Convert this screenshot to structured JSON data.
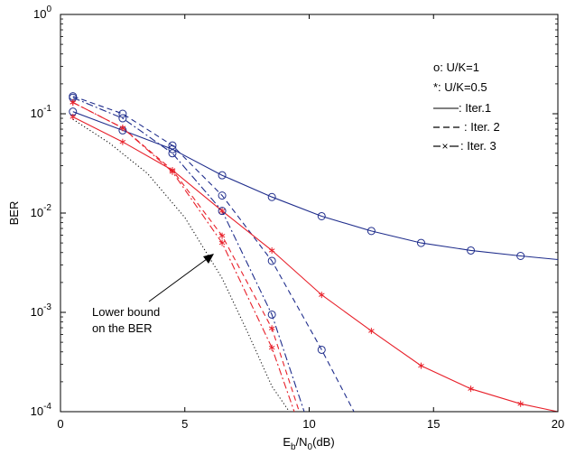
{
  "chart_data": {
    "type": "line",
    "title": "",
    "xlabel": "E_b/N_0(dB)",
    "ylabel": "BER",
    "xlim": [
      0,
      20
    ],
    "ylim": [
      0.0001,
      1
    ],
    "yscale": "log",
    "grid": false,
    "x_ticks": [
      0,
      5,
      10,
      15,
      20
    ],
    "y_tick_exponents": [
      -4,
      -3,
      -2,
      -1,
      0
    ],
    "legend": {
      "placement": "top-right",
      "entries": [
        "o: U/K=1",
        "*: U/K=0.5",
        ": Iter.1",
        ": Iter. 2",
        ": Iter. 3"
      ]
    },
    "annotation": {
      "lines": [
        "Lower bound",
        "on the BER"
      ]
    },
    "series": [
      {
        "color": "#1f2d8c",
        "style": "solid",
        "marker": "o",
        "x": [
          0.5,
          2.5,
          4.5,
          6.5,
          8.5,
          10.5,
          12.5,
          14.5,
          16.5,
          18.5,
          20
        ],
        "y": [
          0.105,
          0.068,
          0.044,
          0.024,
          0.0145,
          0.0093,
          0.0066,
          0.005,
          0.0042,
          0.0037,
          0.0034
        ]
      },
      {
        "color": "#1f2d8c",
        "style": "dashed",
        "marker": "o",
        "x": [
          0.5,
          2.5,
          4.5,
          6.5,
          8.5,
          10.5,
          11.8
        ],
        "y": [
          0.15,
          0.1,
          0.048,
          0.015,
          0.0033,
          0.00042,
          0.0001
        ]
      },
      {
        "color": "#1f2d8c",
        "style": "dashdot",
        "marker": "o",
        "x": [
          0.5,
          2.5,
          4.5,
          6.5,
          8.5,
          9.8
        ],
        "y": [
          0.145,
          0.09,
          0.04,
          0.0105,
          0.00095,
          0.0001
        ]
      },
      {
        "color": "#e8202a",
        "style": "solid",
        "marker": "*",
        "x": [
          0.5,
          2.5,
          4.5,
          6.5,
          8.5,
          10.5,
          12.5,
          14.5,
          16.5,
          18.5,
          20
        ],
        "y": [
          0.093,
          0.052,
          0.027,
          0.0105,
          0.0042,
          0.0015,
          0.00065,
          0.00029,
          0.00017,
          0.00012,
          0.0001
        ]
      },
      {
        "color": "#e8202a",
        "style": "dashed",
        "marker": "*",
        "x": [
          0.5,
          2.5,
          4.5,
          6.5,
          8.5,
          9.6
        ],
        "y": [
          0.13,
          0.072,
          0.027,
          0.0059,
          0.00069,
          0.0001
        ]
      },
      {
        "color": "#e8202a",
        "style": "dashdot",
        "marker": "*",
        "x": [
          0.5,
          2.5,
          4.5,
          6.5,
          8.5,
          9.4
        ],
        "y": [
          0.13,
          0.072,
          0.026,
          0.005,
          0.00044,
          0.0001
        ]
      },
      {
        "color": "#111111",
        "style": "dotted",
        "marker": "none",
        "x": [
          0.5,
          2.0,
          3.5,
          5.0,
          6.5,
          7.5,
          8.5,
          9.2
        ],
        "y": [
          0.088,
          0.05,
          0.025,
          0.009,
          0.0022,
          0.00065,
          0.00018,
          0.0001
        ]
      }
    ]
  }
}
